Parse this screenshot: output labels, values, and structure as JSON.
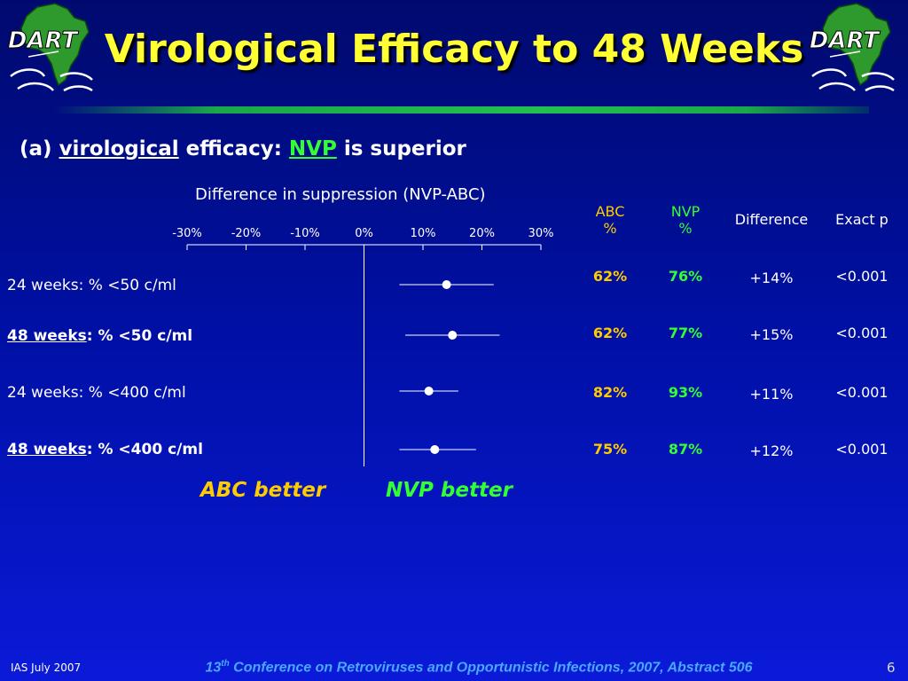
{
  "slide": {
    "logo_text": "DART",
    "title": "Virological Efficacy to 48 Weeks",
    "subheading": {
      "prefix": "(a) ",
      "word1": "virological",
      "mid": " efficacy: ",
      "word2": "NVP",
      "suffix": " is superior"
    },
    "footer_left": "IAS July 2007",
    "footer_center_num": "13",
    "footer_center_sup": "th",
    "footer_center_rest": " Conference on Retroviruses and Opportunistic Infections, 2007, Abstract 506",
    "page_number": "6",
    "better_left": "ABC better",
    "better_right": "NVP better"
  },
  "chart_data": {
    "type": "forest",
    "title": "Difference in suppression (NVP-ABC)",
    "xlim": [
      -30,
      30
    ],
    "ticks": [
      -30,
      -20,
      -10,
      0,
      10,
      20,
      30
    ],
    "tick_labels": [
      "-30%",
      "-20%",
      "-10%",
      "0%",
      "10%",
      "20%",
      "30%"
    ],
    "rows": [
      {
        "label_a": "24 weeks",
        "label_b": ": % <50 c/ml",
        "emph": false,
        "estimate": 14,
        "ci": [
          6,
          22
        ]
      },
      {
        "label_a": "48 weeks",
        "label_b": ": % <50 c/ml",
        "emph": true,
        "estimate": 15,
        "ci": [
          7,
          23
        ]
      },
      {
        "label_a": "24 weeks",
        "label_b": ": % <400 c/ml",
        "emph": false,
        "estimate": 11,
        "ci": [
          6,
          16
        ]
      },
      {
        "label_a": "48 weeks",
        "label_b": ": % <400 c/ml",
        "emph": true,
        "estimate": 12,
        "ci": [
          6,
          19
        ]
      }
    ]
  },
  "table": {
    "headers": {
      "abc": "ABC\n%",
      "nvp": "NVP\n%",
      "diff": "Difference",
      "p": "Exact p"
    },
    "rows": [
      {
        "abc": "62%",
        "nvp": "76%",
        "diff": "+14%",
        "p": "<0.001"
      },
      {
        "abc": "62%",
        "nvp": "77%",
        "diff": "+15%",
        "p": "<0.001"
      },
      {
        "abc": "82%",
        "nvp": "93%",
        "diff": "+11%",
        "p": "<0.001"
      },
      {
        "abc": "75%",
        "nvp": "87%",
        "diff": "+12%",
        "p": "<0.001"
      }
    ]
  },
  "colors": {
    "title": "#ffff33",
    "abc": "#ffcc00",
    "nvp": "#33ff33",
    "footer": "#4aa8ff"
  }
}
